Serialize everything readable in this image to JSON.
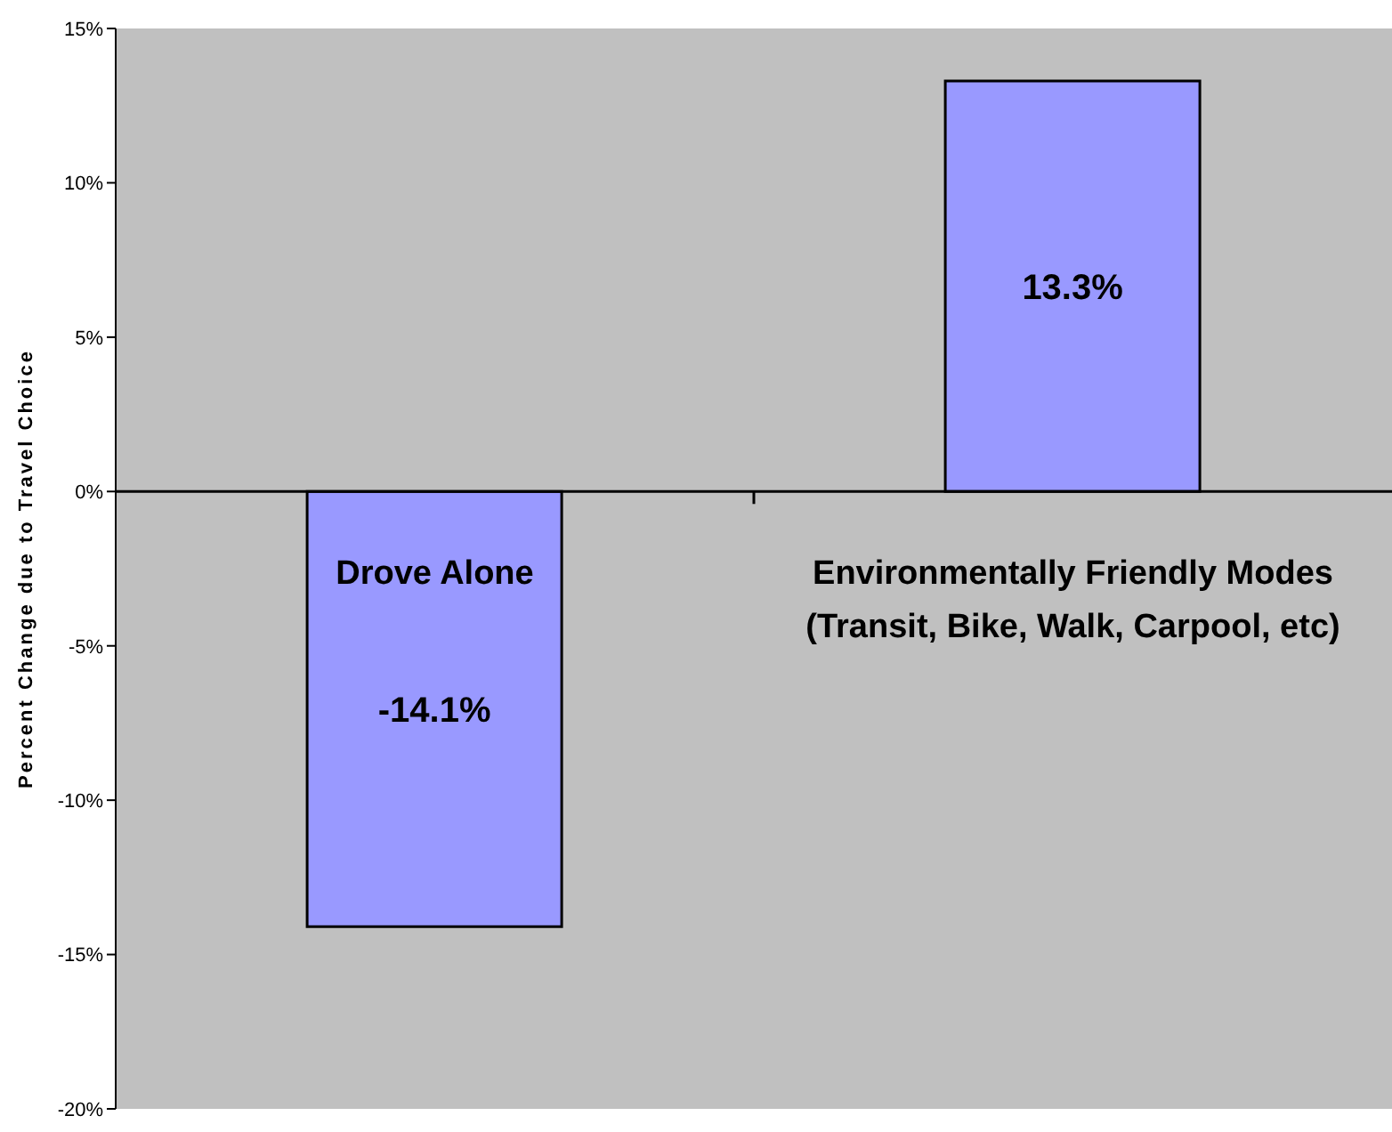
{
  "chart_data": {
    "type": "bar",
    "ylabel": "Percent Change due to Travel Choice",
    "categories": [
      "Drove Alone",
      "Environmentally Friendly Modes\n(Transit, Bike, Walk, Carpool, etc)"
    ],
    "values": [
      -14.1,
      13.3
    ],
    "color": "#9999ff",
    "value_labels": [
      "-14.1%",
      "13.3%"
    ],
    "ylim": [
      -20,
      15
    ],
    "yticks": [
      {
        "value": -20,
        "label": "-20%"
      },
      {
        "value": -15,
        "label": "-15%"
      },
      {
        "value": -10,
        "label": "-10%"
      },
      {
        "value": -5,
        "label": "-5%"
      },
      {
        "value": 0,
        "label": "0%"
      },
      {
        "value": 5,
        "label": "5%"
      },
      {
        "value": 10,
        "label": "10%"
      },
      {
        "value": 15,
        "label": "15%"
      }
    ],
    "grid": false,
    "legend": false
  }
}
